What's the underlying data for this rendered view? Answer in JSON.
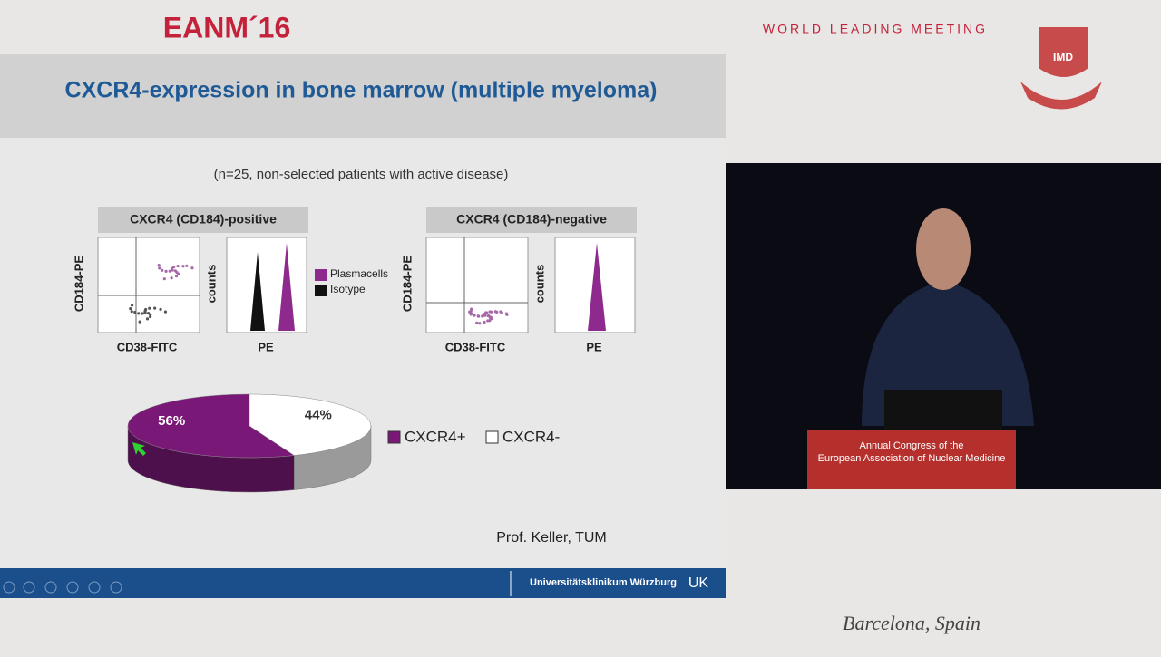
{
  "header": {
    "logo": "EANM´16",
    "tagline": "WORLD LEADING MEETING",
    "badge": "IMD"
  },
  "slide": {
    "title": "CXCR4-expression in bone marrow (multiple myeloma)",
    "subtitle": "(n=25, non-selected patients with active disease)",
    "panels": [
      {
        "heading": "CXCR4 (CD184)-positive",
        "scatter_y": "CD184-PE",
        "scatter_x": "CD38-FITC",
        "hist_y": "counts",
        "hist_x": "PE"
      },
      {
        "heading": "CXCR4 (CD184)-negative",
        "scatter_y": "CD184-PE",
        "scatter_x": "CD38-FITC",
        "hist_y": "counts",
        "hist_x": "PE"
      }
    ],
    "histogram_legend": [
      {
        "name": "Plasmacells",
        "color": "#8e2a8e"
      },
      {
        "name": "Isotype",
        "color": "#111111"
      }
    ],
    "pie": {
      "series": [
        {
          "name": "CXCR4+",
          "color": "#7a1878",
          "side_color": "#4e0f4d",
          "value": 56,
          "label": "56%"
        },
        {
          "name": "CXCR4-",
          "color": "#ffffff",
          "side_color": "#9a9a9a",
          "value": 44,
          "label": "44%"
        }
      ]
    },
    "credit": "Prof. Keller, TUM",
    "footer": "Universitätsklinikum Würzburg"
  },
  "podium": {
    "line1": "Annual Congress of the",
    "line2": "European Association of Nuclear Medicine"
  },
  "location": "Barcelona, Spain"
}
